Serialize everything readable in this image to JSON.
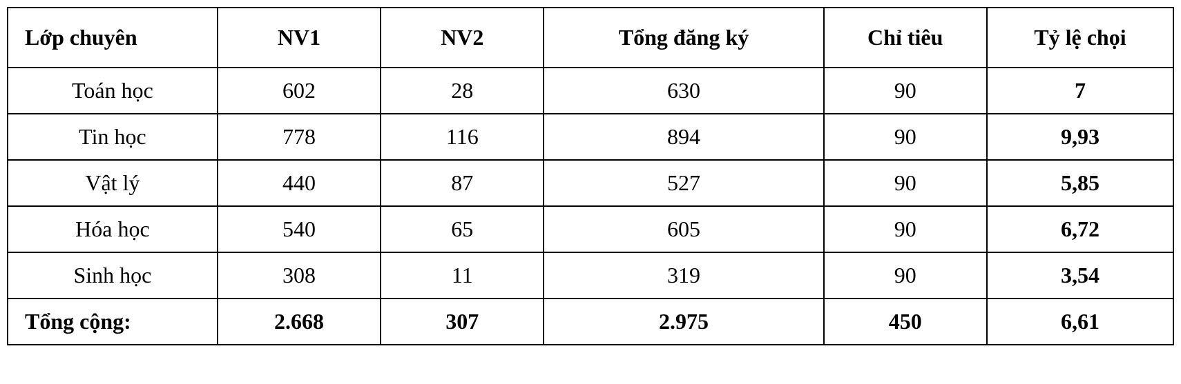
{
  "table": {
    "type": "table",
    "colors": {
      "background": "#ffffff",
      "border": "#000000",
      "text": "#000000"
    },
    "typography": {
      "font_family": "Times New Roman",
      "header_fontsize_pt": 24,
      "cell_fontsize_pt": 24,
      "header_weight": "bold",
      "ratio_weight": "bold",
      "total_row_weight": "bold"
    },
    "columns": [
      {
        "key": "subject",
        "label": "Lớp chuyên",
        "align": "left",
        "width_pct": 18
      },
      {
        "key": "nv1",
        "label": "NV1",
        "align": "center",
        "width_pct": 14
      },
      {
        "key": "nv2",
        "label": "NV2",
        "align": "center",
        "width_pct": 14
      },
      {
        "key": "total",
        "label": "Tổng đăng ký",
        "align": "center",
        "width_pct": 24
      },
      {
        "key": "quota",
        "label": "Chỉ tiêu",
        "align": "center",
        "width_pct": 14
      },
      {
        "key": "ratio",
        "label": "Tỷ lệ chọi",
        "align": "center",
        "width_pct": 16
      }
    ],
    "rows": [
      {
        "subject": "Toán học",
        "nv1": "602",
        "nv2": "28",
        "total": "630",
        "quota": "90",
        "ratio": "7"
      },
      {
        "subject": "Tin học",
        "nv1": "778",
        "nv2": "116",
        "total": "894",
        "quota": "90",
        "ratio": "9,93"
      },
      {
        "subject": "Vật lý",
        "nv1": "440",
        "nv2": "87",
        "total": "527",
        "quota": "90",
        "ratio": "5,85"
      },
      {
        "subject": "Hóa học",
        "nv1": "540",
        "nv2": "65",
        "total": "605",
        "quota": "90",
        "ratio": "6,72"
      },
      {
        "subject": "Sinh học",
        "nv1": "308",
        "nv2": "11",
        "total": "319",
        "quota": "90",
        "ratio": "3,54"
      }
    ],
    "total_row": {
      "subject": "Tổng cộng:",
      "nv1": "2.668",
      "nv2": "307",
      "total": "2.975",
      "quota": "450",
      "ratio": "6,61"
    }
  }
}
